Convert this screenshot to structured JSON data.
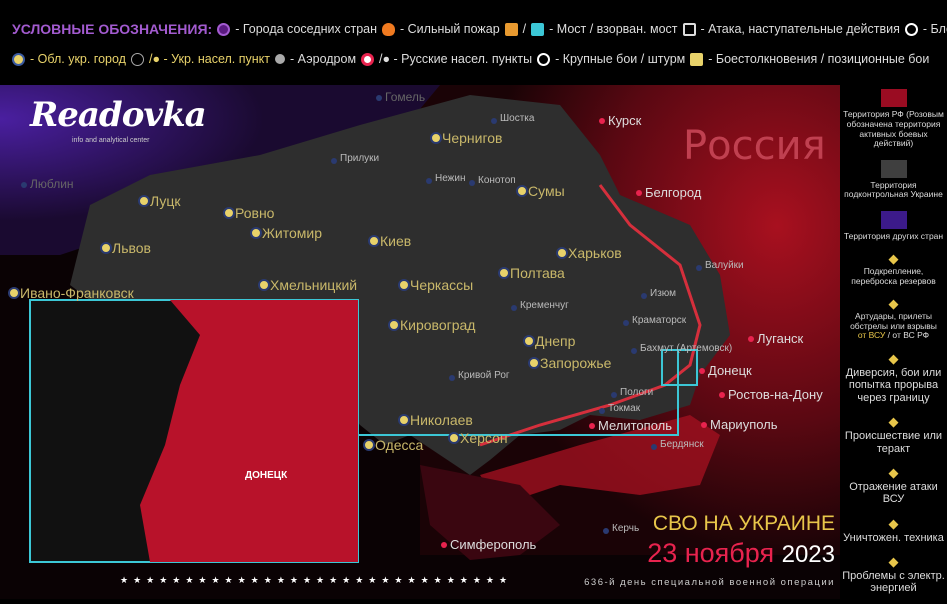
{
  "legend_top": {
    "title": "УСЛОВНЫЕ ОБОЗНАЧЕНИЯ:",
    "items_row1": [
      {
        "icon": "neighbor-city-icon",
        "label": "- Города соседних стран"
      },
      {
        "icon": "fire-icon",
        "label": "- Сильный пожар"
      },
      {
        "icon": "bridge-icon",
        "label": "/ "
      },
      {
        "icon": "destroyed-bridge-icon",
        "label": "- Мост / взорван. мост"
      },
      {
        "icon": "attack-chevron-icon",
        "label": "- Атака, наступательные действия"
      },
      {
        "icon": "blockade-icon",
        "label": "- Блокада"
      }
    ],
    "items_row2": [
      {
        "icon": "oblast-city-icon",
        "label": "- Обл. укр. город"
      },
      {
        "icon": "ukr-settlement-icon",
        "label": "/● - Укр. насел. пункт"
      },
      {
        "icon": "airfield-icon",
        "label": "- Аэродром"
      },
      {
        "icon": "russian-settlement-icon",
        "label": "/● - Русские  насел. пункты"
      },
      {
        "icon": "major-battle-icon",
        "label": "- Крупные бои / штурм"
      },
      {
        "icon": "clash-icon",
        "label": "- Боестолкновения / позиционные бои"
      }
    ]
  },
  "colors": {
    "russia": "#b0102a",
    "ukraine": "#3a3a3a",
    "other": "#3c1a7a",
    "accent_yellow": "#e8c64a",
    "accent_red": "#e8234e",
    "inset_border": "#3cc7d6"
  },
  "logo": {
    "name": "Readovka",
    "subtitle": "info and analytical center"
  },
  "map": {
    "country_label": "Россия",
    "cities": [
      {
        "n": "Гомель",
        "c": "grey"
      },
      {
        "n": "Люблин",
        "c": "grey"
      },
      {
        "n": "Чернигов",
        "c": "big"
      },
      {
        "n": "Шостка",
        "c": ""
      },
      {
        "n": "Курск",
        "c": "ru"
      },
      {
        "n": "Прилуки",
        "c": ""
      },
      {
        "n": "Нежин",
        "c": ""
      },
      {
        "n": "Конотоп",
        "c": ""
      },
      {
        "n": "Сумы",
        "c": "big"
      },
      {
        "n": "Белгород",
        "c": "ru"
      },
      {
        "n": "Луцк",
        "c": "big"
      },
      {
        "n": "Ровно",
        "c": "big"
      },
      {
        "n": "Житомир",
        "c": "big"
      },
      {
        "n": "Киев",
        "c": "big"
      },
      {
        "n": "Львов",
        "c": "big"
      },
      {
        "n": "Ивано-Франковск",
        "c": "big"
      },
      {
        "n": "Хмельницкий",
        "c": "big"
      },
      {
        "n": "Черкассы",
        "c": "big"
      },
      {
        "n": "Полтава",
        "c": "big"
      },
      {
        "n": "Харьков",
        "c": "big"
      },
      {
        "n": "Кременчуг",
        "c": ""
      },
      {
        "n": "Кировоград",
        "c": "big"
      },
      {
        "n": "Днепр",
        "c": "big"
      },
      {
        "n": "Запорожье",
        "c": "big"
      },
      {
        "n": "Кривой Рог",
        "c": ""
      },
      {
        "n": "Николаев",
        "c": "big"
      },
      {
        "n": "Одесса",
        "c": "big"
      },
      {
        "n": "Херсон",
        "c": "big"
      },
      {
        "n": "Мелитополь",
        "c": "ru"
      },
      {
        "n": "Мариуполь",
        "c": "ru"
      },
      {
        "n": "Донецк",
        "c": "ru"
      },
      {
        "n": "Луганск",
        "c": "ru"
      },
      {
        "n": "Ростов-на-Дону",
        "c": "ru"
      },
      {
        "n": "Симферополь",
        "c": "ru"
      },
      {
        "n": "Бердянск",
        "c": ""
      },
      {
        "n": "Изюм",
        "c": ""
      },
      {
        "n": "Краматорск",
        "c": ""
      },
      {
        "n": "Бахмут (Артемовск)",
        "c": ""
      },
      {
        "n": "Валуйки",
        "c": ""
      },
      {
        "n": "Токмак",
        "c": ""
      },
      {
        "n": "Пологи",
        "c": ""
      },
      {
        "n": "Керчь",
        "c": ""
      }
    ],
    "inset_city": "ДОНЕЦК"
  },
  "legend_side": [
    {
      "swatch": "#9a0c22",
      "label": "Территория РФ (Розовым обозначена территория активных боевых действий)"
    },
    {
      "swatch": "#3f3f3f",
      "label": "Территория подконтрольная Украине"
    },
    {
      "swatch": "#3c1a8a",
      "label": "Территория других стран"
    },
    {
      "icon": "reinforcement-icon",
      "label": "Подкрепление, переброска резервов"
    },
    {
      "icon": "artillery-strike-icon",
      "label": "Артудары, прилеты обстрелы или взрывы",
      "sub_a": "от ВСУ",
      "sub_sep": " / ",
      "sub_b": "от ВС РФ"
    },
    {
      "icon": "sabotage-icon",
      "label": "Диверсия, бои или попытка прорыва через границу"
    },
    {
      "icon": "incident-warning-icon",
      "label": "Происшествие или теракт"
    },
    {
      "icon": "repelled-attack-icon",
      "label": "Отражение атаки ВСУ"
    },
    {
      "icon": "destroyed-equipment-icon",
      "label": "Уничтожен. техника"
    },
    {
      "icon": "power-problem-icon",
      "label": "Проблемы с электр. энергией"
    }
  ],
  "footer": {
    "title": "СВО НА УКРАИНЕ",
    "date": "23 ноября",
    "year": "2023",
    "day_text": "636-й день специальной военной операции"
  }
}
